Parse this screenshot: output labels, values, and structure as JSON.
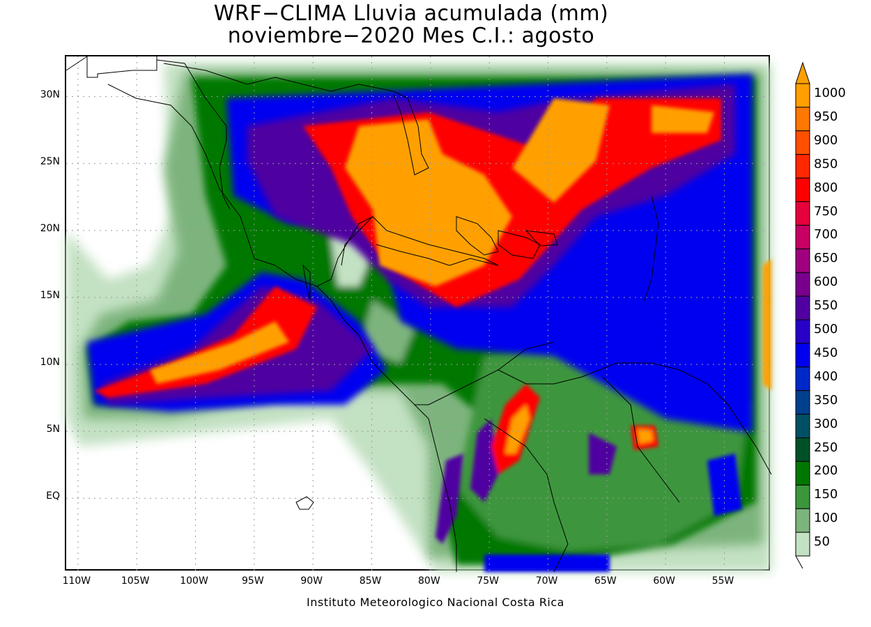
{
  "title": {
    "line1": "WRF−CLIMA Lluvia acumulada (mm)",
    "line2": "noviembre−2020 Mes C.I.: agosto"
  },
  "credit": "Instituto Meteorologico Nacional Costa Rica",
  "map": {
    "lon_range": [
      -111,
      -51
    ],
    "lat_range": [
      -5.5,
      33
    ],
    "lat_ticks": [
      {
        "value": 30,
        "label": "30N"
      },
      {
        "value": 25,
        "label": "25N"
      },
      {
        "value": 20,
        "label": "20N"
      },
      {
        "value": 15,
        "label": "15N"
      },
      {
        "value": 10,
        "label": "10N"
      },
      {
        "value": 5,
        "label": "5N"
      },
      {
        "value": 0,
        "label": "EQ"
      }
    ],
    "lon_ticks": [
      {
        "value": -110,
        "label": "110W"
      },
      {
        "value": -105,
        "label": "105W"
      },
      {
        "value": -100,
        "label": "100W"
      },
      {
        "value": -95,
        "label": "95W"
      },
      {
        "value": -90,
        "label": "90W"
      },
      {
        "value": -85,
        "label": "85W"
      },
      {
        "value": -80,
        "label": "80W"
      },
      {
        "value": -75,
        "label": "75W"
      },
      {
        "value": -70,
        "label": "70W"
      },
      {
        "value": -65,
        "label": "65W"
      },
      {
        "value": -60,
        "label": "60W"
      },
      {
        "value": -55,
        "label": "55W"
      }
    ]
  },
  "legend": {
    "levels": [
      {
        "label": "1000",
        "color": "#ffa000"
      },
      {
        "label": "950",
        "color": "#ff7800"
      },
      {
        "label": "900",
        "color": "#ff5000"
      },
      {
        "label": "850",
        "color": "#ff2800"
      },
      {
        "label": "800",
        "color": "#ff0000"
      },
      {
        "label": "750",
        "color": "#e6003c"
      },
      {
        "label": "700",
        "color": "#c80064"
      },
      {
        "label": "650",
        "color": "#a00080"
      },
      {
        "label": "600",
        "color": "#78008c"
      },
      {
        "label": "550",
        "color": "#5000a0"
      },
      {
        "label": "500",
        "color": "#2800c8"
      },
      {
        "label": "450",
        "color": "#0000f0"
      },
      {
        "label": "400",
        "color": "#0028c8"
      },
      {
        "label": "350",
        "color": "#00408c"
      },
      {
        "label": "300",
        "color": "#005064"
      },
      {
        "label": "250",
        "color": "#005028"
      },
      {
        "label": "200",
        "color": "#007800"
      },
      {
        "label": "150",
        "color": "#3c963c"
      },
      {
        "label": "100",
        "color": "#7db47d"
      },
      {
        "label": "50",
        "color": "#c3e1c3"
      }
    ]
  }
}
